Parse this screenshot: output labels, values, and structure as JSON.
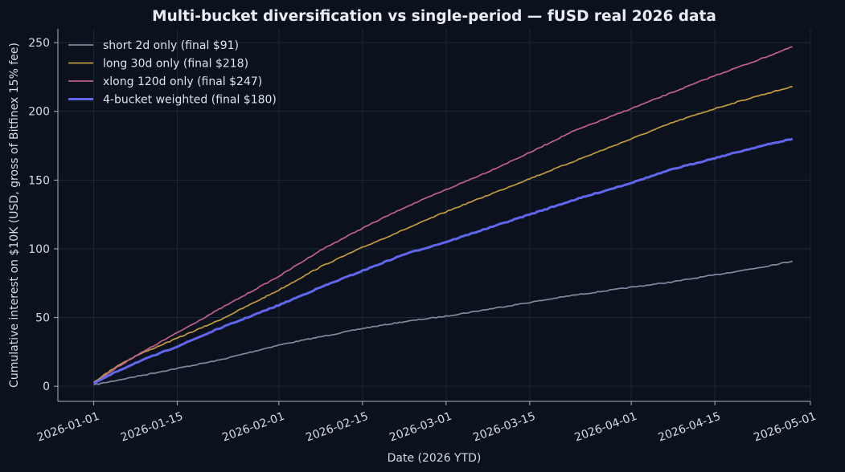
{
  "chart_data": {
    "type": "line",
    "title": "Multi-bucket diversification vs single-period — fUSD real 2026 data",
    "xlabel": "Date (2026 YTD)",
    "ylabel": "Cumulative interest on $10K (USD, gross of Bitfinex 15% fee)",
    "xlim": [
      "2025-12-26",
      "2026-05-01"
    ],
    "ylim": [
      -11,
      260
    ],
    "x_ticks": [
      "2026-01-01",
      "2026-01-15",
      "2026-02-01",
      "2026-02-15",
      "2026-03-01",
      "2026-03-15",
      "2026-04-01",
      "2026-04-15",
      "2026-05-01"
    ],
    "y_ticks": [
      0,
      50,
      100,
      150,
      200,
      250
    ],
    "grid": true,
    "legend_position": "top-left",
    "series": [
      {
        "name": "short 2d only (final $91)",
        "color": "#7f8a9e",
        "points": [
          [
            "2026-01-01",
            1
          ],
          [
            "2026-01-08",
            7
          ],
          [
            "2026-01-15",
            13
          ],
          [
            "2026-01-22",
            19
          ],
          [
            "2026-02-01",
            30
          ],
          [
            "2026-02-08",
            36
          ],
          [
            "2026-02-15",
            42
          ],
          [
            "2026-02-22",
            47
          ],
          [
            "2026-03-01",
            51
          ],
          [
            "2026-03-08",
            56
          ],
          [
            "2026-03-15",
            61
          ],
          [
            "2026-03-22",
            66
          ],
          [
            "2026-04-01",
            72
          ],
          [
            "2026-04-08",
            76
          ],
          [
            "2026-04-15",
            81
          ],
          [
            "2026-04-22",
            86
          ],
          [
            "2026-04-28",
            91
          ]
        ]
      },
      {
        "name": "long 30d only (final $218)",
        "color": "#c49a3c",
        "points": [
          [
            "2026-01-01",
            3
          ],
          [
            "2026-01-05",
            15
          ],
          [
            "2026-01-08",
            22
          ],
          [
            "2026-01-15",
            35
          ],
          [
            "2026-01-22",
            48
          ],
          [
            "2026-02-01",
            70
          ],
          [
            "2026-02-08",
            87
          ],
          [
            "2026-02-15",
            101
          ],
          [
            "2026-02-22",
            114
          ],
          [
            "2026-03-01",
            127
          ],
          [
            "2026-03-08",
            139
          ],
          [
            "2026-03-15",
            151
          ],
          [
            "2026-03-22",
            163
          ],
          [
            "2026-04-01",
            180
          ],
          [
            "2026-04-08",
            192
          ],
          [
            "2026-04-15",
            202
          ],
          [
            "2026-04-22",
            211
          ],
          [
            "2026-04-28",
            218
          ]
        ]
      },
      {
        "name": "xlong 120d only (final $247)",
        "color": "#c0608f",
        "points": [
          [
            "2026-01-01",
            2
          ],
          [
            "2026-01-05",
            14
          ],
          [
            "2026-01-08",
            22
          ],
          [
            "2026-01-15",
            39
          ],
          [
            "2026-01-22",
            56
          ],
          [
            "2026-02-01",
            80
          ],
          [
            "2026-02-08",
            99
          ],
          [
            "2026-02-15",
            115
          ],
          [
            "2026-02-22",
            130
          ],
          [
            "2026-03-01",
            143
          ],
          [
            "2026-03-08",
            156
          ],
          [
            "2026-03-15",
            170
          ],
          [
            "2026-03-22",
            185
          ],
          [
            "2026-04-01",
            202
          ],
          [
            "2026-04-08",
            214
          ],
          [
            "2026-04-15",
            226
          ],
          [
            "2026-04-22",
            237
          ],
          [
            "2026-04-28",
            247
          ]
        ]
      },
      {
        "name": "4-bucket weighted (final $180)",
        "color": "#6166ee",
        "points": [
          [
            "2026-01-01",
            2
          ],
          [
            "2026-01-05",
            11
          ],
          [
            "2026-01-08",
            17
          ],
          [
            "2026-01-15",
            29
          ],
          [
            "2026-01-22",
            42
          ],
          [
            "2026-02-01",
            59
          ],
          [
            "2026-02-08",
            72
          ],
          [
            "2026-02-15",
            84
          ],
          [
            "2026-02-22",
            96
          ],
          [
            "2026-03-01",
            105
          ],
          [
            "2026-03-08",
            115
          ],
          [
            "2026-03-15",
            125
          ],
          [
            "2026-03-22",
            135
          ],
          [
            "2026-04-01",
            148
          ],
          [
            "2026-04-08",
            158
          ],
          [
            "2026-04-15",
            166
          ],
          [
            "2026-04-22",
            174
          ],
          [
            "2026-04-28",
            180
          ]
        ]
      }
    ]
  }
}
